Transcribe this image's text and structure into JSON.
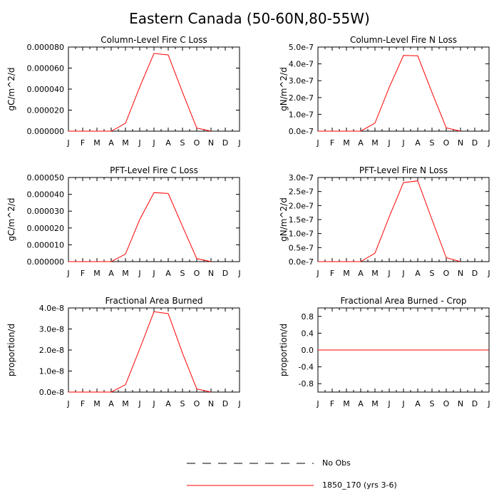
{
  "figure": {
    "title": "Eastern Canada (50-60N,80-55W)"
  },
  "legend": {
    "items": [
      {
        "label": "No Obs",
        "style": "dashed",
        "color": "#000000"
      },
      {
        "label": "1850_170 (yrs 3-6)",
        "style": "solid",
        "color": "#ff0000"
      }
    ]
  },
  "chart_data": [
    {
      "type": "line",
      "title": "Column-Level Fire C Loss",
      "ylabel": "gC/m^2/d",
      "categories": [
        "J",
        "F",
        "M",
        "A",
        "M",
        "J",
        "J",
        "A",
        "S",
        "O",
        "N",
        "D",
        "J"
      ],
      "ylim": [
        0,
        8e-05
      ],
      "yticks": [
        0,
        2e-05,
        4e-05,
        6e-05,
        8e-05
      ],
      "ytick_labels": [
        "0.000000",
        "0.000020",
        "0.000040",
        "0.000060",
        "0.000080"
      ],
      "series": [
        {
          "name": "1850_170 (yrs 3-6)",
          "color": "#ff0000",
          "values": [
            0,
            0,
            0,
            0,
            7.5e-06,
            4.2e-05,
            7.4e-05,
            7.25e-05,
            3.7e-05,
            3e-06,
            0,
            null,
            null
          ]
        }
      ]
    },
    {
      "type": "line",
      "title": "Column-Level Fire N Loss",
      "ylabel": "gN/m^2/d",
      "categories": [
        "J",
        "F",
        "M",
        "A",
        "M",
        "J",
        "J",
        "A",
        "S",
        "O",
        "N",
        "D",
        "J"
      ],
      "ylim": [
        0,
        5e-07
      ],
      "yticks": [
        0,
        1e-07,
        2e-07,
        3e-07,
        4e-07,
        5e-07
      ],
      "ytick_labels": [
        "0.0e-7",
        "1.0e-7",
        "2.0e-7",
        "3.0e-7",
        "4.0e-7",
        "5.0e-7"
      ],
      "series": [
        {
          "name": "1850_170 (yrs 3-6)",
          "color": "#ff0000",
          "values": [
            0,
            0,
            0,
            0,
            4.8e-08,
            2.6e-07,
            4.5e-07,
            4.48e-07,
            2.3e-07,
            2e-08,
            0,
            null,
            null
          ]
        }
      ]
    },
    {
      "type": "line",
      "title": "PFT-Level Fire C Loss",
      "ylabel": "gC/m^2/d",
      "categories": [
        "J",
        "F",
        "M",
        "A",
        "M",
        "J",
        "J",
        "A",
        "S",
        "O",
        "N",
        "D",
        "J"
      ],
      "ylim": [
        0,
        5e-05
      ],
      "yticks": [
        0,
        1e-05,
        2e-05,
        3e-05,
        4e-05,
        5e-05
      ],
      "ytick_labels": [
        "0.000000",
        "0.000010",
        "0.000020",
        "0.000030",
        "0.000040",
        "0.000050"
      ],
      "series": [
        {
          "name": "1850_170 (yrs 3-6)",
          "color": "#ff0000",
          "values": [
            0,
            0,
            0,
            0,
            4.5e-06,
            2.5e-05,
            4.1e-05,
            4.05e-05,
            2.1e-05,
            1.8e-06,
            0,
            null,
            null
          ]
        }
      ]
    },
    {
      "type": "line",
      "title": "PFT-Level Fire N Loss",
      "ylabel": "gN/m^2/d",
      "categories": [
        "J",
        "F",
        "M",
        "A",
        "M",
        "J",
        "J",
        "A",
        "S",
        "O",
        "N",
        "D",
        "J"
      ],
      "ylim": [
        0,
        3e-07
      ],
      "yticks": [
        0,
        5e-08,
        1e-07,
        1.5e-07,
        2e-07,
        2.5e-07,
        3e-07
      ],
      "ytick_labels": [
        "0.0e-7",
        "0.5e-7",
        "1.0e-7",
        "1.5e-7",
        "2.0e-7",
        "2.5e-7",
        "3.0e-7"
      ],
      "series": [
        {
          "name": "1850_170 (yrs 3-6)",
          "color": "#ff0000",
          "values": [
            0,
            0,
            0,
            0,
            3e-08,
            1.6e-07,
            2.82e-07,
            2.88e-07,
            1.5e-07,
            1.4e-08,
            0,
            null,
            null
          ]
        }
      ]
    },
    {
      "type": "line",
      "title": "Fractional Area Burned",
      "ylabel": "proportion/d",
      "categories": [
        "J",
        "F",
        "M",
        "A",
        "M",
        "J",
        "J",
        "A",
        "S",
        "O",
        "N",
        "D",
        "J"
      ],
      "ylim": [
        0,
        4e-08
      ],
      "yticks": [
        0,
        1e-08,
        2e-08,
        3e-08,
        4e-08
      ],
      "ytick_labels": [
        "0.0e-8",
        "1.0e-8",
        "2.0e-8",
        "3.0e-8",
        "4.0e-8"
      ],
      "series": [
        {
          "name": "1850_170 (yrs 3-6)",
          "color": "#ff0000",
          "values": [
            0,
            0,
            0,
            0,
            3.5e-09,
            2.05e-08,
            3.82e-08,
            3.73e-08,
            1.85e-08,
            1.5e-09,
            0,
            null,
            null
          ]
        }
      ]
    },
    {
      "type": "line",
      "title": "Fractional Area Burned - Crop",
      "ylabel": "proportion/d",
      "categories": [
        "J",
        "F",
        "M",
        "A",
        "M",
        "J",
        "J",
        "A",
        "S",
        "O",
        "N",
        "D",
        "J"
      ],
      "ylim": [
        -1,
        1
      ],
      "yticks": [
        -0.8,
        -0.4,
        0,
        0.4,
        0.8
      ],
      "ytick_labels": [
        "-0.8",
        "-0.4",
        "0.0",
        "0.4",
        "0.8"
      ],
      "series": [
        {
          "name": "1850_170 (yrs 3-6)",
          "color": "#ff0000",
          "values": [
            0,
            0,
            0,
            0,
            0,
            0,
            0,
            0,
            0,
            0,
            0,
            0,
            0
          ]
        }
      ]
    }
  ]
}
